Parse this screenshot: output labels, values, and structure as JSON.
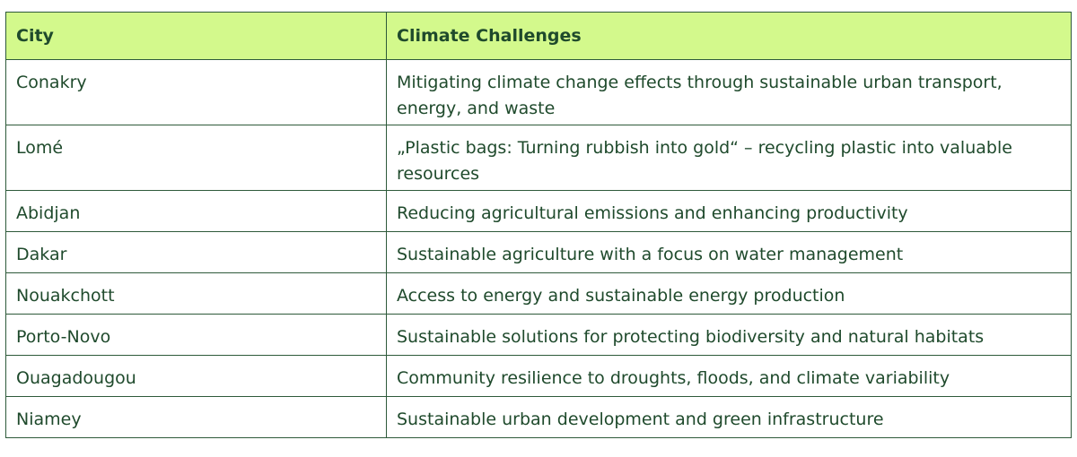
{
  "table": {
    "headers": [
      "City",
      "Climate Challenges"
    ],
    "rows": [
      {
        "city": "Conakry",
        "challenge": "Mitigating climate change effects through sustainable urban transport, energy, and waste"
      },
      {
        "city": "Lomé",
        "challenge": "„Plastic bags: Turning rubbish into gold“ – recycling plastic into valuable resources"
      },
      {
        "city": "Abidjan",
        "challenge": "Reducing agricultural emissions and enhancing productivity"
      },
      {
        "city": "Dakar",
        "challenge": "Sustainable agriculture with a focus on water management"
      },
      {
        "city": "Nouakchott",
        "challenge": "Access to energy and sustainable energy production"
      },
      {
        "city": "Porto-Novo",
        "challenge": "Sustainable solutions for protecting biodiversity and natural habitats"
      },
      {
        "city": "Ouagadougou",
        "challenge": "Community resilience to droughts, floods, and climate variability"
      },
      {
        "city": "Niamey",
        "challenge": "Sustainable urban development and green infrastructure"
      }
    ]
  },
  "colors": {
    "header_background": "#d3f98c",
    "border": "#2e5a3a",
    "text": "#1f4a2c"
  }
}
